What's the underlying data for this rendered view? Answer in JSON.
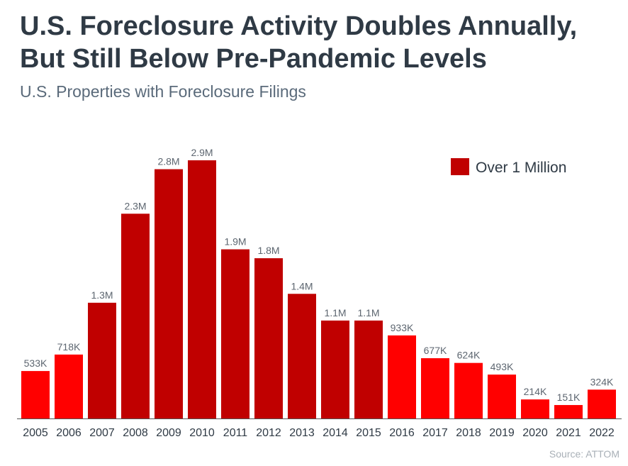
{
  "title_line1": "U.S. Foreclosure Activity Doubles Annually,",
  "title_line2": "But Still Below Pre-Pandemic Levels",
  "subtitle": "U.S. Properties with Foreclosure Filings",
  "source": "Source: ATTOM",
  "colors": {
    "under_1m": "#ff0000",
    "over_1m": "#c00000",
    "axis": "#555555"
  },
  "chart_data": {
    "type": "bar",
    "categories": [
      "2005",
      "2006",
      "2007",
      "2008",
      "2009",
      "2010",
      "2011",
      "2012",
      "2013",
      "2014",
      "2015",
      "2016",
      "2017",
      "2018",
      "2019",
      "2020",
      "2021",
      "2022"
    ],
    "values": [
      533000,
      718000,
      1300000,
      2300000,
      2800000,
      2900000,
      1900000,
      1800000,
      1400000,
      1100000,
      1100000,
      933000,
      677000,
      624000,
      493000,
      214000,
      151000,
      324000
    ],
    "labels": [
      "533K",
      "718K",
      "1.3M",
      "2.3M",
      "2.8M",
      "2.9M",
      "1.9M",
      "1.8M",
      "1.4M",
      "1.1M",
      "1.1M",
      "933K",
      "677K",
      "624K",
      "493K",
      "214K",
      "151K",
      "324K"
    ],
    "over_1m": [
      false,
      false,
      true,
      true,
      true,
      true,
      true,
      true,
      true,
      true,
      true,
      false,
      false,
      false,
      false,
      false,
      false,
      false
    ],
    "legend": [
      {
        "name": "Over 1 Million",
        "color": "#c00000"
      }
    ],
    "legend_position": "top-right",
    "ylim": [
      0,
      2900000
    ],
    "grid": false
  }
}
